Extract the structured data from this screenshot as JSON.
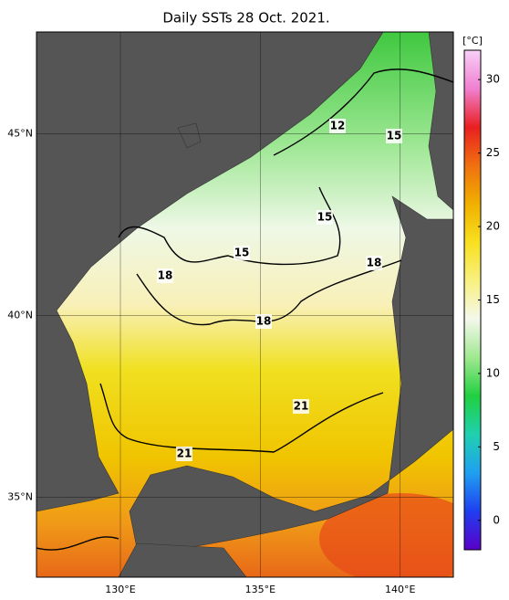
{
  "title": "Daily SSTs 28 Oct. 2021.",
  "map": {
    "lonlim": [
      127,
      141.9
    ],
    "latlim": [
      32.8,
      47.8
    ],
    "lon_ticks": [
      {
        "value": 130,
        "label": "130°E"
      },
      {
        "value": 135,
        "label": "135°E"
      },
      {
        "value": 140,
        "label": "140°E"
      }
    ],
    "lat_ticks": [
      {
        "value": 35,
        "label": "35°N"
      },
      {
        "value": 40,
        "label": "40°N"
      },
      {
        "value": 45,
        "label": "45°N"
      }
    ],
    "contour_labels": [
      12,
      15,
      15,
      15,
      18,
      18,
      18,
      21,
      21
    ]
  },
  "colorbar": {
    "unit": "[°C]",
    "lim": [
      -2,
      32
    ],
    "ticks": [
      0,
      5,
      10,
      15,
      20,
      25,
      30
    ],
    "colors": [
      "#5a00c8",
      "#1f3ff0",
      "#1fa0f0",
      "#20d0b0",
      "#20d040",
      "#a0e890",
      "#f4f8ec",
      "#f8f080",
      "#f8e020",
      "#f0b000",
      "#f07010",
      "#e82020",
      "#f080d0",
      "#f8d0f8"
    ]
  }
}
